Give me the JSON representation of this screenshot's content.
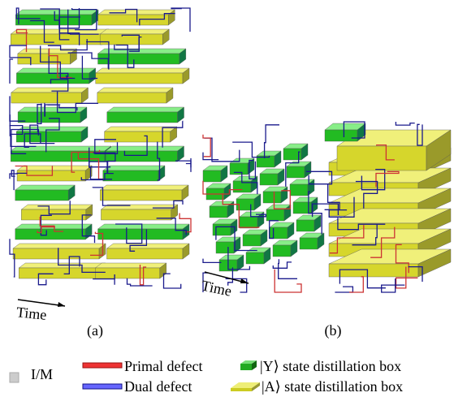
{
  "panels": [
    {
      "label": "(a)",
      "time_label": "Time"
    },
    {
      "label": "(b)",
      "time_label": "Time"
    }
  ],
  "legend": {
    "items": [
      {
        "label": "I/M"
      },
      {
        "label": "Primal defect"
      },
      {
        "label": "Dual defect"
      },
      {
        "label": "|Y⟩ state distillation box"
      },
      {
        "label": "|A⟩ state distillation box"
      }
    ]
  }
}
